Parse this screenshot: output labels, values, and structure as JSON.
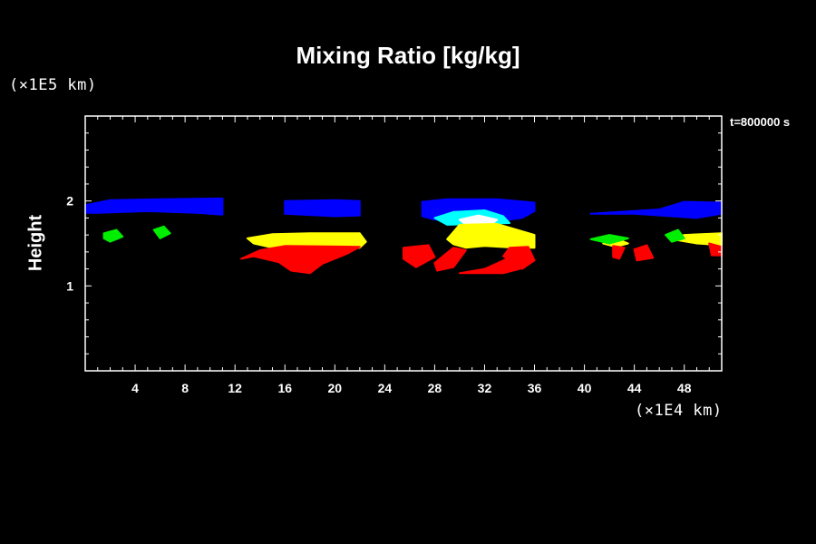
{
  "chart_data": {
    "type": "heatmap",
    "title": "Mixing Ratio [kg/kg]",
    "xlabel": "",
    "ylabel": "Height",
    "x_scale_label": "(×1E4 km)",
    "y_scale_label": "(×1E5 km)",
    "time_label": "t=800000 s",
    "xlim": [
      0,
      51
    ],
    "ylim": [
      0,
      3
    ],
    "x_ticks": [
      4,
      8,
      12,
      16,
      20,
      24,
      28,
      32,
      36,
      40,
      44,
      48
    ],
    "y_ticks": [
      1,
      2
    ],
    "grid": false,
    "colors": {
      "background": "#000000",
      "frame": "#ffffff",
      "red": "#ff0000",
      "yellow": "#ffff00",
      "green": "#00ee00",
      "blue": "#0000ff",
      "cyan": "#00ffff",
      "white": "#ffffff"
    },
    "regions": [
      {
        "color": "blue",
        "points": [
          [
            0,
            1.95
          ],
          [
            2,
            2.01
          ],
          [
            6,
            2.02
          ],
          [
            11,
            2.03
          ],
          [
            11,
            1.84
          ],
          [
            9,
            1.86
          ],
          [
            5,
            1.88
          ],
          [
            1,
            1.86
          ],
          [
            0,
            1.86
          ]
        ]
      },
      {
        "color": "blue",
        "points": [
          [
            16,
            2.0
          ],
          [
            20,
            2.01
          ],
          [
            22,
            2.0
          ],
          [
            22,
            1.83
          ],
          [
            20,
            1.82
          ],
          [
            16,
            1.85
          ]
        ]
      },
      {
        "color": "blue",
        "points": [
          [
            27,
            1.99
          ],
          [
            29,
            2.02
          ],
          [
            33,
            2.02
          ],
          [
            36,
            1.98
          ],
          [
            36,
            1.88
          ],
          [
            35,
            1.8
          ],
          [
            34,
            1.78
          ],
          [
            28,
            1.78
          ],
          [
            27,
            1.82
          ]
        ]
      },
      {
        "color": "blue",
        "points": [
          [
            40.5,
            1.85
          ],
          [
            46,
            1.9
          ],
          [
            48,
            1.99
          ],
          [
            51,
            1.98
          ],
          [
            51,
            1.85
          ],
          [
            49,
            1.8
          ],
          [
            44,
            1.85
          ]
        ]
      },
      {
        "color": "cyan",
        "points": [
          [
            28,
            1.8
          ],
          [
            29.5,
            1.87
          ],
          [
            32,
            1.89
          ],
          [
            33.5,
            1.82
          ],
          [
            34,
            1.74
          ],
          [
            29,
            1.72
          ]
        ]
      },
      {
        "color": "white",
        "points": [
          [
            30,
            1.78
          ],
          [
            31.5,
            1.83
          ],
          [
            33,
            1.78
          ],
          [
            32.5,
            1.72
          ],
          [
            30.5,
            1.72
          ]
        ]
      },
      {
        "color": "yellow",
        "points": [
          [
            13,
            1.56
          ],
          [
            15,
            1.61
          ],
          [
            18,
            1.62
          ],
          [
            22,
            1.62
          ],
          [
            22.5,
            1.52
          ],
          [
            22,
            1.45
          ],
          [
            15,
            1.45
          ],
          [
            13.5,
            1.5
          ]
        ]
      },
      {
        "color": "yellow",
        "points": [
          [
            29,
            1.55
          ],
          [
            30,
            1.72
          ],
          [
            33,
            1.73
          ],
          [
            36,
            1.6
          ],
          [
            36,
            1.45
          ],
          [
            34.5,
            1.45
          ],
          [
            32,
            1.47
          ],
          [
            30.5,
            1.45
          ],
          [
            29.5,
            1.49
          ]
        ]
      },
      {
        "color": "yellow",
        "points": [
          [
            41.5,
            1.5
          ],
          [
            42.5,
            1.56
          ],
          [
            43.5,
            1.5
          ],
          [
            42.5,
            1.46
          ]
        ]
      },
      {
        "color": "yellow",
        "points": [
          [
            47,
            1.55
          ],
          [
            48,
            1.6
          ],
          [
            51,
            1.62
          ],
          [
            51,
            1.48
          ],
          [
            49,
            1.5
          ]
        ]
      },
      {
        "color": "green",
        "points": [
          [
            1.5,
            1.62
          ],
          [
            2.5,
            1.66
          ],
          [
            3,
            1.58
          ],
          [
            2,
            1.52
          ],
          [
            1.5,
            1.56
          ]
        ]
      },
      {
        "color": "green",
        "points": [
          [
            5.5,
            1.66
          ],
          [
            6.3,
            1.7
          ],
          [
            6.8,
            1.62
          ],
          [
            6,
            1.56
          ]
        ]
      },
      {
        "color": "green",
        "points": [
          [
            40.5,
            1.55
          ],
          [
            42,
            1.6
          ],
          [
            43.5,
            1.56
          ],
          [
            42,
            1.5
          ]
        ]
      },
      {
        "color": "green",
        "points": [
          [
            46.5,
            1.6
          ],
          [
            47.5,
            1.66
          ],
          [
            48,
            1.56
          ],
          [
            47,
            1.52
          ]
        ]
      },
      {
        "color": "red",
        "points": [
          [
            12.5,
            1.32
          ],
          [
            14,
            1.42
          ],
          [
            16,
            1.47
          ],
          [
            22,
            1.46
          ],
          [
            21,
            1.38
          ],
          [
            19,
            1.26
          ],
          [
            18,
            1.15
          ],
          [
            16.5,
            1.18
          ],
          [
            15.5,
            1.28
          ],
          [
            13.5,
            1.35
          ]
        ]
      },
      {
        "color": "red",
        "points": [
          [
            25.5,
            1.45
          ],
          [
            27.5,
            1.48
          ],
          [
            28,
            1.34
          ],
          [
            26.5,
            1.22
          ],
          [
            25.5,
            1.32
          ]
        ]
      },
      {
        "color": "red",
        "points": [
          [
            28,
            1.27
          ],
          [
            29.5,
            1.45
          ],
          [
            30.5,
            1.42
          ],
          [
            29.5,
            1.22
          ],
          [
            28.2,
            1.18
          ]
        ]
      },
      {
        "color": "red",
        "points": [
          [
            30,
            1.15
          ],
          [
            32,
            1.2
          ],
          [
            33.8,
            1.32
          ],
          [
            34.8,
            1.2
          ],
          [
            33.5,
            1.15
          ]
        ]
      },
      {
        "color": "red",
        "points": [
          [
            34,
            1.45
          ],
          [
            35.5,
            1.46
          ],
          [
            36,
            1.3
          ],
          [
            35,
            1.2
          ],
          [
            33.5,
            1.35
          ]
        ]
      },
      {
        "color": "red",
        "points": [
          [
            42.3,
            1.47
          ],
          [
            43.2,
            1.45
          ],
          [
            42.8,
            1.32
          ],
          [
            42.3,
            1.34
          ]
        ]
      },
      {
        "color": "red",
        "points": [
          [
            44,
            1.43
          ],
          [
            45,
            1.48
          ],
          [
            45.5,
            1.33
          ],
          [
            44.2,
            1.3
          ]
        ]
      },
      {
        "color": "red",
        "points": [
          [
            50,
            1.5
          ],
          [
            51,
            1.46
          ],
          [
            51,
            1.36
          ],
          [
            50.2,
            1.36
          ]
        ]
      }
    ]
  }
}
